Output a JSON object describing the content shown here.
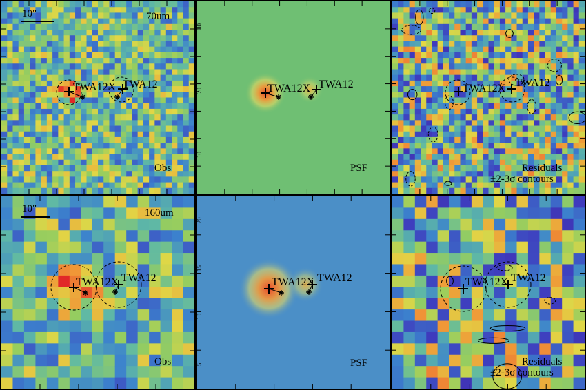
{
  "panels": [
    {
      "id": "obs-70",
      "kind": "obs",
      "band": "70um",
      "scale_label": "10\"",
      "corner_label": "Obs",
      "label2": "",
      "src1": "TWA12X",
      "src2": "TWA12",
      "contours": false,
      "ticks": []
    },
    {
      "id": "psf-70",
      "kind": "psf",
      "band": "",
      "scale_label": "",
      "corner_label": "PSF",
      "label2": "",
      "src1": "TWA12X",
      "src2": "TWA12",
      "contours": false,
      "ticks": [
        "30",
        "20",
        "10"
      ]
    },
    {
      "id": "res-70",
      "kind": "res",
      "band": "",
      "scale_label": "",
      "corner_label": "Residuals",
      "label2": "±2-3σ contours",
      "src1": "TWA12X",
      "src2": "TWA12",
      "contours": true,
      "ticks": []
    },
    {
      "id": "obs-160",
      "kind": "obs",
      "band": "160um",
      "scale_label": "10\"",
      "corner_label": "Obs",
      "label2": "",
      "src1": "TWA12X",
      "src2": "TWA12",
      "contours": false,
      "ticks": []
    },
    {
      "id": "psf-160",
      "kind": "psf",
      "band": "",
      "scale_label": "",
      "corner_label": "PSF",
      "label2": "",
      "src1": "TWA12X",
      "src2": "TWA12",
      "contours": false,
      "ticks": [
        "20",
        "15",
        "10",
        "5"
      ]
    },
    {
      "id": "res-160",
      "kind": "res",
      "band": "",
      "scale_label": "",
      "corner_label": "Residuals",
      "label2": "±2-3σ contours",
      "src1": "TWA12X",
      "src2": "TWA12",
      "contours": true,
      "ticks": []
    }
  ],
  "colors": {
    "psf70_bg": "#6fbf73",
    "psf160_bg": "#4b8fc7",
    "frame": "#000000"
  }
}
